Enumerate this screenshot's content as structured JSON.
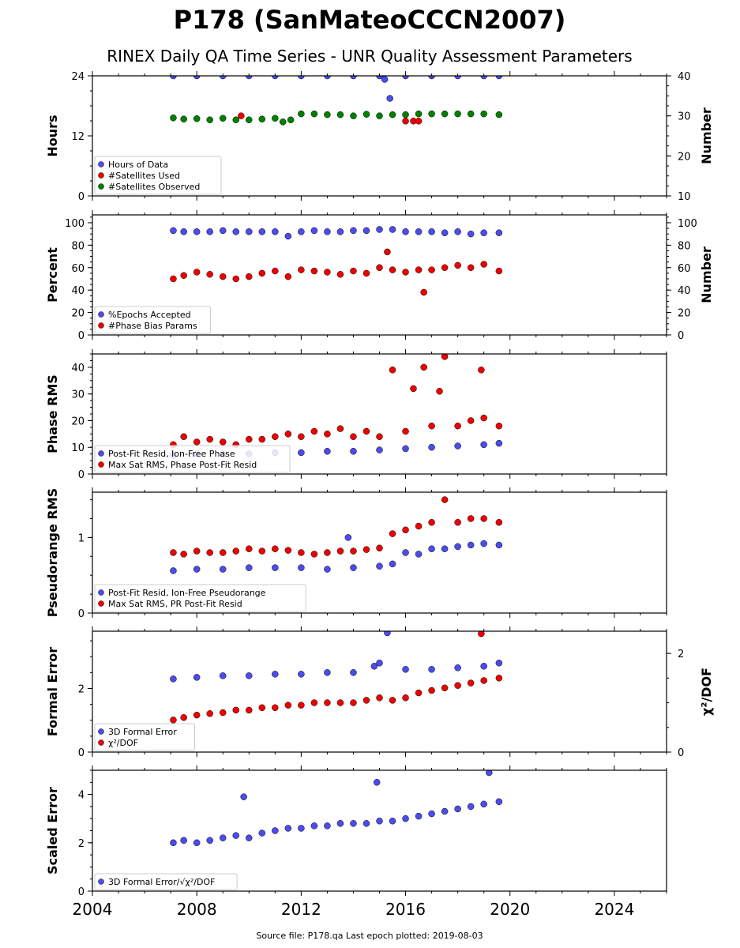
{
  "figure": {
    "title": "P178 (SanMateoCCCN2007)",
    "subtitle": "RINEX Daily QA Time Series - UNR Quality Assessment Parameters",
    "footer": "Source file: P178.qa Last epoch plotted: 2019-08-03",
    "x_ticks": [
      2004,
      2008,
      2012,
      2016,
      2020,
      2024
    ],
    "x_range": [
      2004,
      2026
    ]
  },
  "colors": {
    "blue": "#4c4cee",
    "red": "#ee0000",
    "green": "#008000",
    "edge": "#000000"
  },
  "chart_data": [
    {
      "type": "scatter",
      "ylabel": "Hours",
      "ylabel_right": "Number",
      "ylim": [
        0,
        24
      ],
      "yticks": [
        0,
        12,
        24
      ],
      "ylim_right": [
        10,
        40
      ],
      "yticks_right": [
        10,
        20,
        30,
        40
      ],
      "legend_position": "lower-left",
      "series": [
        {
          "name": "Hours of Data",
          "color": "blue",
          "axis": "left",
          "x": [
            2007.1,
            2008.0,
            2009.0,
            2010.0,
            2011.0,
            2012.0,
            2013.0,
            2014.0,
            2015.0,
            2015.2,
            2015.4,
            2016.0,
            2017.0,
            2018.0,
            2019.0,
            2019.58
          ],
          "y": [
            24,
            24,
            24,
            24,
            24,
            24,
            24,
            24,
            24,
            23.3,
            19.5,
            24,
            24,
            24,
            24,
            24
          ]
        },
        {
          "name": "#Satellites Used",
          "color": "red",
          "axis": "right",
          "x": [
            2009.7,
            2016.0,
            2016.3,
            2016.5
          ],
          "y": [
            30,
            28.7,
            28.7,
            28.7
          ]
        },
        {
          "name": "#Satellites Observed",
          "color": "green",
          "axis": "right",
          "x": [
            2007.1,
            2007.5,
            2008.0,
            2008.5,
            2009.0,
            2009.5,
            2010.0,
            2010.5,
            2011.0,
            2011.3,
            2011.6,
            2012.0,
            2012.5,
            2013.0,
            2013.5,
            2014.0,
            2014.5,
            2015.0,
            2015.5,
            2016.0,
            2016.5,
            2017.0,
            2017.5,
            2018.0,
            2018.5,
            2019.0,
            2019.58
          ],
          "y": [
            29.5,
            29.2,
            29.3,
            29.0,
            29.4,
            29.0,
            29.0,
            29.2,
            29.4,
            28.5,
            29.0,
            30.5,
            30.5,
            30.3,
            30.3,
            30.0,
            30.4,
            30.0,
            30.3,
            30.3,
            30.5,
            30.5,
            30.5,
            30.5,
            30.5,
            30.5,
            30.3
          ]
        }
      ]
    },
    {
      "type": "scatter",
      "ylabel": "Percent",
      "ylabel_right": "Number",
      "ylim": [
        0,
        107
      ],
      "yticks": [
        0,
        20,
        40,
        60,
        80,
        100
      ],
      "ylim_right": [
        0,
        107
      ],
      "yticks_right": [
        0,
        20,
        40,
        60,
        80,
        100
      ],
      "legend_position": "lower-left",
      "series": [
        {
          "name": "%Epochs Accepted",
          "color": "blue",
          "axis": "left",
          "x": [
            2007.1,
            2007.5,
            2008.0,
            2008.5,
            2009.0,
            2009.5,
            2010.0,
            2010.5,
            2011.0,
            2011.5,
            2012.0,
            2012.5,
            2013.0,
            2013.5,
            2014.0,
            2014.5,
            2015.0,
            2015.5,
            2016.0,
            2016.5,
            2017.0,
            2017.5,
            2018.0,
            2018.5,
            2019.0,
            2019.58
          ],
          "y": [
            93,
            92,
            92,
            92,
            93,
            92,
            92,
            92,
            92,
            88,
            92,
            93,
            92,
            92,
            93,
            93,
            94,
            94,
            92,
            92,
            92,
            91,
            92,
            90,
            91,
            91
          ]
        },
        {
          "name": "#Phase Bias Params",
          "color": "red",
          "axis": "right",
          "x": [
            2007.1,
            2007.5,
            2008.0,
            2008.5,
            2009.0,
            2009.5,
            2010.0,
            2010.5,
            2011.0,
            2011.5,
            2012.0,
            2012.5,
            2013.0,
            2013.5,
            2014.0,
            2014.5,
            2015.0,
            2015.3,
            2015.5,
            2016.0,
            2016.5,
            2016.7,
            2017.0,
            2017.5,
            2018.0,
            2018.5,
            2019.0,
            2019.58
          ],
          "y": [
            50,
            53,
            56,
            54,
            52,
            50,
            52,
            55,
            57,
            52,
            58,
            57,
            56,
            54,
            57,
            55,
            60,
            74,
            58,
            56,
            58,
            38,
            58,
            60,
            62,
            60,
            63,
            57
          ]
        }
      ]
    },
    {
      "type": "scatter",
      "ylabel": "Phase RMS",
      "ylim": [
        0,
        45
      ],
      "yticks": [
        0,
        10,
        20,
        30,
        40
      ],
      "legend_position": "lower-left",
      "series": [
        {
          "name": "Post-Fit Resid, Ion-Free Phase",
          "color": "blue",
          "x": [
            2007.1,
            2008.0,
            2009.0,
            2010.0,
            2011.0,
            2012.0,
            2013.0,
            2014.0,
            2015.0,
            2016.0,
            2017.0,
            2018.0,
            2019.0,
            2019.58
          ],
          "y": [
            7,
            7.5,
            7.5,
            7.5,
            8,
            8,
            8.5,
            8.5,
            9,
            9.5,
            10,
            10.5,
            11,
            11.5
          ]
        },
        {
          "name": "Max Sat RMS, Phase Post-Fit Resid",
          "color": "red",
          "x": [
            2007.1,
            2007.5,
            2008.0,
            2008.5,
            2009.0,
            2009.5,
            2010.0,
            2010.5,
            2011.0,
            2011.5,
            2012.0,
            2012.5,
            2013.0,
            2013.5,
            2014.0,
            2014.5,
            2015.0,
            2015.5,
            2016.0,
            2016.3,
            2016.7,
            2017.0,
            2017.3,
            2017.5,
            2018.0,
            2018.5,
            2018.9,
            2019.0,
            2019.58
          ],
          "y": [
            11,
            14,
            12,
            13,
            12,
            11,
            13,
            13,
            14,
            15,
            14,
            16,
            15,
            17,
            14,
            16,
            14,
            39,
            16,
            32,
            40,
            18,
            31,
            44,
            18,
            20,
            39,
            21,
            18
          ]
        }
      ]
    },
    {
      "type": "scatter",
      "ylabel": "Pseudorange RMS",
      "ylim": [
        0,
        1.6
      ],
      "yticks": [
        0,
        1
      ],
      "legend_position": "lower-left",
      "series": [
        {
          "name": "Post-Fit Resid, Ion-Free Pseudorange",
          "color": "blue",
          "x": [
            2007.1,
            2008.0,
            2009.0,
            2010.0,
            2011.0,
            2012.0,
            2013.0,
            2013.8,
            2014.0,
            2015.0,
            2015.5,
            2016.0,
            2016.5,
            2017.0,
            2017.5,
            2018.0,
            2018.5,
            2019.0,
            2019.58
          ],
          "y": [
            0.56,
            0.58,
            0.58,
            0.6,
            0.6,
            0.6,
            0.58,
            1.0,
            0.6,
            0.62,
            0.65,
            0.8,
            0.78,
            0.85,
            0.85,
            0.88,
            0.9,
            0.92,
            0.9
          ]
        },
        {
          "name": "Max Sat RMS, PR Post-Fit Resid",
          "color": "red",
          "x": [
            2007.1,
            2007.5,
            2008.0,
            2008.5,
            2009.0,
            2009.5,
            2010.0,
            2010.5,
            2011.0,
            2011.5,
            2012.0,
            2012.5,
            2013.0,
            2013.5,
            2014.0,
            2014.5,
            2015.0,
            2015.5,
            2016.0,
            2016.5,
            2017.0,
            2017.5,
            2018.0,
            2018.5,
            2019.0,
            2019.58
          ],
          "y": [
            0.8,
            0.78,
            0.82,
            0.8,
            0.8,
            0.82,
            0.85,
            0.82,
            0.85,
            0.83,
            0.8,
            0.78,
            0.8,
            0.82,
            0.82,
            0.84,
            0.86,
            1.05,
            1.1,
            1.15,
            1.2,
            1.5,
            1.2,
            1.25,
            1.25,
            1.2
          ]
        }
      ]
    },
    {
      "type": "scatter",
      "ylabel": "Formal Error",
      "ylabel_right": "χ²/DOF",
      "ylim": [
        0,
        3.8
      ],
      "yticks": [
        0,
        2
      ],
      "ylim_right": [
        0,
        2.45
      ],
      "yticks_right": [
        0,
        2
      ],
      "legend_position": "lower-left",
      "series": [
        {
          "name": "3D Formal Error",
          "color": "blue",
          "axis": "left",
          "x": [
            2007.1,
            2008.0,
            2009.0,
            2010.0,
            2011.0,
            2012.0,
            2013.0,
            2014.0,
            2014.8,
            2015.0,
            2015.3,
            2016.0,
            2017.0,
            2018.0,
            2019.0,
            2019.58
          ],
          "y": [
            2.3,
            2.35,
            2.4,
            2.4,
            2.45,
            2.45,
            2.5,
            2.5,
            2.7,
            2.8,
            3.75,
            2.6,
            2.6,
            2.65,
            2.7,
            2.8
          ]
        },
        {
          "name": "χ²/DOF",
          "color": "red",
          "axis": "right",
          "x": [
            2007.1,
            2007.5,
            2008.0,
            2008.5,
            2009.0,
            2009.5,
            2010.0,
            2010.5,
            2011.0,
            2011.5,
            2012.0,
            2012.5,
            2013.0,
            2013.5,
            2014.0,
            2014.5,
            2015.0,
            2015.5,
            2016.0,
            2016.5,
            2017.0,
            2017.5,
            2018.0,
            2018.5,
            2018.9,
            2019.0,
            2019.58
          ],
          "y": [
            0.65,
            0.7,
            0.75,
            0.78,
            0.8,
            0.85,
            0.85,
            0.9,
            0.9,
            0.95,
            0.95,
            1.0,
            1.0,
            1.0,
            1.0,
            1.05,
            1.1,
            1.05,
            1.1,
            1.2,
            1.25,
            1.3,
            1.35,
            1.4,
            2.4,
            1.45,
            1.5
          ]
        }
      ]
    },
    {
      "type": "scatter",
      "ylabel": "Scaled Error",
      "ylim": [
        0,
        5
      ],
      "yticks": [
        0,
        2,
        4
      ],
      "legend_position": "lower-left",
      "series": [
        {
          "name": "3D Formal Error/√χ²/DOF",
          "color": "blue",
          "x": [
            2007.1,
            2007.5,
            2008.0,
            2008.5,
            2009.0,
            2009.5,
            2009.8,
            2010.0,
            2010.5,
            2011.0,
            2011.5,
            2012.0,
            2012.5,
            2013.0,
            2013.5,
            2014.0,
            2014.5,
            2014.9,
            2015.0,
            2015.5,
            2016.0,
            2016.5,
            2017.0,
            2017.5,
            2018.0,
            2018.5,
            2019.0,
            2019.2,
            2019.58
          ],
          "y": [
            2.0,
            2.1,
            2.0,
            2.1,
            2.2,
            2.3,
            3.9,
            2.2,
            2.4,
            2.5,
            2.6,
            2.6,
            2.7,
            2.7,
            2.8,
            2.8,
            2.8,
            4.5,
            2.9,
            2.9,
            3.0,
            3.1,
            3.2,
            3.3,
            3.4,
            3.5,
            3.6,
            4.9,
            3.7
          ]
        }
      ]
    }
  ]
}
